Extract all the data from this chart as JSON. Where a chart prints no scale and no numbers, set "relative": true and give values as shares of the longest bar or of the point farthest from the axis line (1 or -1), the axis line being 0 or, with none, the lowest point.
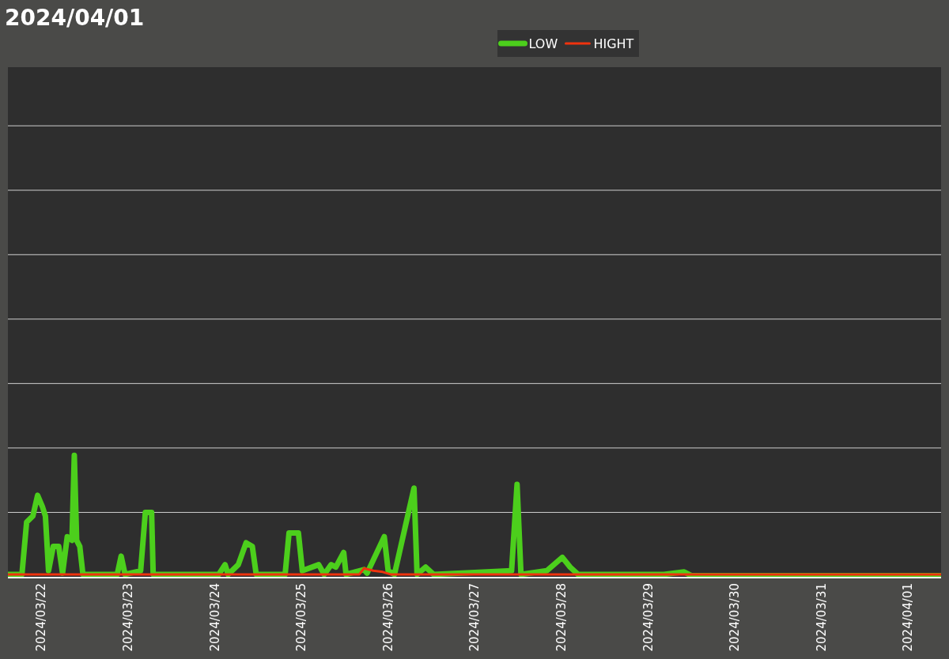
{
  "chart_data": {
    "type": "line",
    "title": "2024/04/01",
    "relative": true,
    "legend": "top",
    "ref_lines": [
      {
        "axis": "y",
        "value": 0.53,
        "color": "#cfcfcf"
      },
      {
        "axis": "y",
        "value": 1.06,
        "color": "#cfcfcf"
      },
      {
        "axis": "y",
        "value": 1.59,
        "color": "#cfcfcf"
      },
      {
        "axis": "y",
        "value": 2.12,
        "color": "#cfcfcf"
      },
      {
        "axis": "y",
        "value": 2.65,
        "color": "#cfcfcf"
      },
      {
        "axis": "y",
        "value": 3.18,
        "color": "#cfcfcf"
      },
      {
        "axis": "y",
        "value": 3.71,
        "color": "#cfcfcf"
      }
    ],
    "marker": "none",
    "line_style": "solid",
    "xlim": [
      "2024-03-21T14:42",
      "2024-04-01T09:04"
    ],
    "xticks": [
      {
        "value": "2024-03-22",
        "label": "2024/03/22"
      },
      {
        "value": "2024-03-23",
        "label": "2024/03/23"
      },
      {
        "value": "2024-03-24",
        "label": "2024/03/24"
      },
      {
        "value": "2024-03-25",
        "label": "2024/03/25"
      },
      {
        "value": "2024-03-26",
        "label": "2024/03/26"
      },
      {
        "value": "2024-03-27",
        "label": "2024/03/27"
      },
      {
        "value": "2024-03-28",
        "label": "2024/03/28"
      },
      {
        "value": "2024-03-29",
        "label": "2024/03/29"
      },
      {
        "value": "2024-03-30",
        "label": "2024/03/30"
      },
      {
        "value": "2024-03-31",
        "label": "2024/03/31"
      },
      {
        "value": "2024-04-01",
        "label": "2024/04/01"
      }
    ],
    "series": [
      {
        "name": "LOW",
        "color": "#4ccf1c",
        "x": [
          "2024-03-21T14:42",
          "2024-03-21T18:35",
          "2024-03-21T19:53",
          "2024-03-21T21:37",
          "2024-03-21T22:55",
          "2024-03-22T00:13",
          "2024-03-22T01:05",
          "2024-03-22T01:57",
          "2024-03-22T03:15",
          "2024-03-22T04:46",
          "2024-03-22T05:50",
          "2024-03-22T07:08",
          "2024-03-22T08:26",
          "2024-03-22T09:05",
          "2024-03-22T09:44",
          "2024-03-22T10:36",
          "2024-03-22T11:28",
          "2024-03-22T20:58",
          "2024-03-22T22:03",
          "2024-03-22T23:08",
          "2024-03-23T03:27",
          "2024-03-23T04:45",
          "2024-03-23T06:29",
          "2024-03-23T06:55",
          "2024-03-24T01:05",
          "2024-03-24T02:49",
          "2024-03-24T03:40",
          "2024-03-24T06:29",
          "2024-03-24T08:39",
          "2024-03-24T10:22",
          "2024-03-24T11:27",
          "2024-03-24T19:27",
          "2024-03-24T20:32",
          "2024-03-24T23:08",
          "2024-03-25T00:13",
          "2024-03-25T04:45",
          "2024-03-25T06:16",
          "2024-03-25T08:12",
          "2024-03-25T09:30",
          "2024-03-25T11:40",
          "2024-03-25T12:19",
          "2024-03-25T17:17",
          "2024-03-25T18:09",
          "2024-03-25T22:54",
          "2024-03-25T23:59",
          "2024-03-26T01:43",
          "2024-03-26T07:08",
          "2024-03-26T07:59",
          "2024-03-26T10:22",
          "2024-03-26T12:32",
          "2024-03-27T10:09",
          "2024-03-27T11:40",
          "2024-03-27T12:45",
          "2024-03-27T19:53",
          "2024-03-28T00:12",
          "2024-03-28T02:22",
          "2024-03-28T04:32",
          "2024-03-29T04:19",
          "2024-03-29T09:56",
          "2024-03-29T11:53",
          "2024-04-01T09:04"
        ],
        "values": [
          0.02,
          0.02,
          0.45,
          0.5,
          0.67,
          0.58,
          0.5,
          0.05,
          0.25,
          0.25,
          0.03,
          0.33,
          0.3,
          1.0,
          0.3,
          0.25,
          0.02,
          0.02,
          0.17,
          0.02,
          0.05,
          0.53,
          0.53,
          0.02,
          0.02,
          0.1,
          0.02,
          0.1,
          0.28,
          0.25,
          0.02,
          0.02,
          0.36,
          0.36,
          0.05,
          0.1,
          0.02,
          0.1,
          0.08,
          0.2,
          0.02,
          0.06,
          0.03,
          0.33,
          0.05,
          0.02,
          0.73,
          0.02,
          0.08,
          0.02,
          0.05,
          0.76,
          0.02,
          0.05,
          0.16,
          0.08,
          0.02,
          0.02,
          0.04,
          0.01,
          0.01
        ]
      },
      {
        "name": "HIGHT",
        "color": "#f0330e",
        "x": [
          "2024-03-21T14:42",
          "2024-03-24T07:34",
          "2024-03-25T16:00",
          "2024-03-25T17:17",
          "2024-03-25T19:53",
          "2024-03-25T22:29",
          "2024-03-26T00:38",
          "2024-04-01T09:04"
        ],
        "values": [
          0.02,
          0.02,
          0.02,
          0.07,
          0.05,
          0.04,
          0.02,
          0.02
        ]
      }
    ]
  }
}
